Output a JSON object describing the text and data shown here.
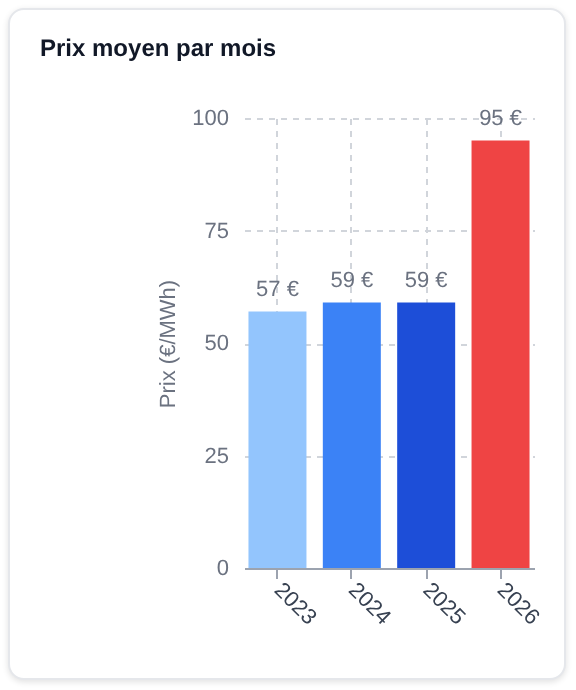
{
  "chart_data": {
    "type": "bar",
    "title": "Prix moyen par mois",
    "ylabel": "Prix (€/MWh)",
    "categories": [
      "2023",
      "2024",
      "2025",
      "2026"
    ],
    "values": [
      57,
      59,
      59,
      95
    ],
    "colors": [
      "#93c5fd",
      "#3b82f6",
      "#1d4ed8",
      "#ef4444"
    ],
    "value_labels": [
      "57 €",
      "59 €",
      "59 €",
      "95 €"
    ],
    "ylim": [
      0,
      100
    ],
    "yticks": [
      0,
      25,
      50,
      75,
      100
    ],
    "grid": true
  }
}
